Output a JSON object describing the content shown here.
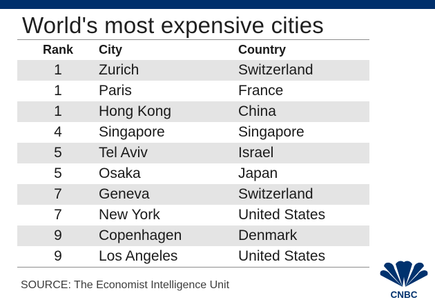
{
  "title": "World's most expensive cities",
  "columns": {
    "rank": "Rank",
    "city": "City",
    "country": "Country"
  },
  "rows": [
    {
      "rank": "1",
      "city": "Zurich",
      "country": "Switzerland"
    },
    {
      "rank": "1",
      "city": "Paris",
      "country": "France"
    },
    {
      "rank": "1",
      "city": "Hong Kong",
      "country": "China"
    },
    {
      "rank": "4",
      "city": "Singapore",
      "country": "Singapore"
    },
    {
      "rank": "5",
      "city": "Tel Aviv",
      "country": "Israel"
    },
    {
      "rank": "5",
      "city": "Osaka",
      "country": "Japan"
    },
    {
      "rank": "7",
      "city": "Geneva",
      "country": "Switzerland"
    },
    {
      "rank": "7",
      "city": "New York",
      "country": "United States"
    },
    {
      "rank": "9",
      "city": "Copenhagen",
      "country": "Denmark"
    },
    {
      "rank": "9",
      "city": "Los Angeles",
      "country": "United States"
    }
  ],
  "source": "SOURCE: The Economist Intelligence Unit",
  "logo_text": "CNBC",
  "colors": {
    "top_bar": "#002f6c",
    "stripe": "#e4e4e4",
    "logo": "#00326e"
  }
}
